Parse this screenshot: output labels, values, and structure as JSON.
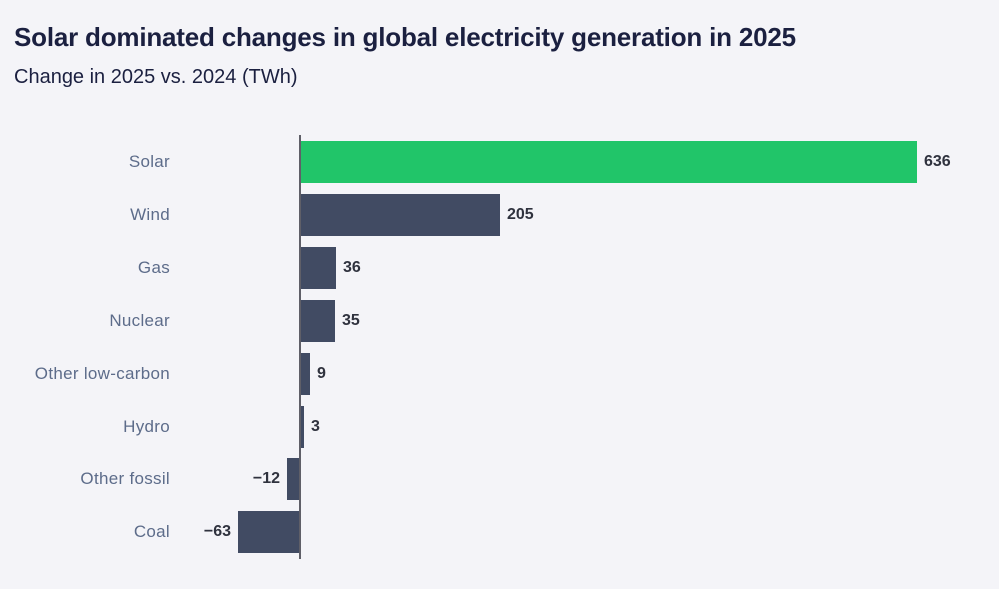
{
  "page": {
    "background_color": "#f4f4f8"
  },
  "header": {
    "title": "Solar dominated changes in global electricity generation in 2025",
    "subtitle": "Change in 2025 vs. 2024 (TWh)"
  },
  "chart_data": {
    "type": "bar",
    "orientation": "horizontal",
    "title": "Solar dominated changes in global electricity generation in 2025",
    "subtitle": "Change in 2025 vs. 2024 (TWh)",
    "unit": "TWh",
    "categories": [
      "Solar",
      "Wind",
      "Gas",
      "Nuclear",
      "Other low-carbon",
      "Hydro",
      "Other fossil",
      "Coal"
    ],
    "values": [
      636,
      205,
      36,
      35,
      9,
      3,
      -12,
      -63
    ],
    "bar_colors": [
      "#21c569",
      "#414b63",
      "#414b63",
      "#414b63",
      "#414b63",
      "#414b63",
      "#414b63",
      "#414b63"
    ],
    "highlight_color": "#21c569",
    "default_bar_color": "#414b63",
    "value_labels_shown": true,
    "grid": false,
    "legend": "none",
    "xlim": [
      -63,
      660
    ],
    "baseline_x_value": 0,
    "styles": {
      "title_color": "#1b2040",
      "subtitle_color": "#1b2040",
      "category_label_color": "#5d6c8a",
      "value_label_color": "#2f323e",
      "axis_line_color": "#5f5f68"
    }
  }
}
